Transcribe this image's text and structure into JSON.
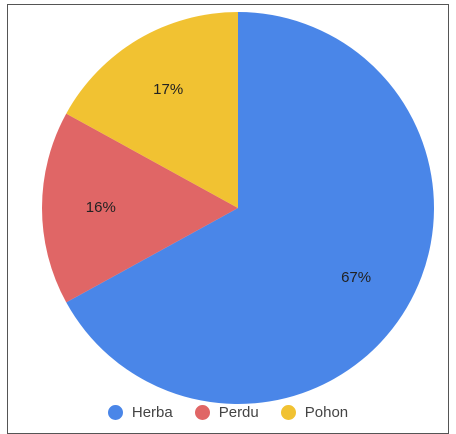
{
  "chart_data": {
    "type": "pie",
    "categories": [
      "Herba",
      "Perdu",
      "Pohon"
    ],
    "values": [
      67,
      16,
      17
    ],
    "labels": [
      "67%",
      "16%",
      "17%"
    ],
    "colors": [
      "#4A86E8",
      "#E06666",
      "#F1C232"
    ],
    "start": "top, clockwise",
    "legend_position": "bottom"
  }
}
